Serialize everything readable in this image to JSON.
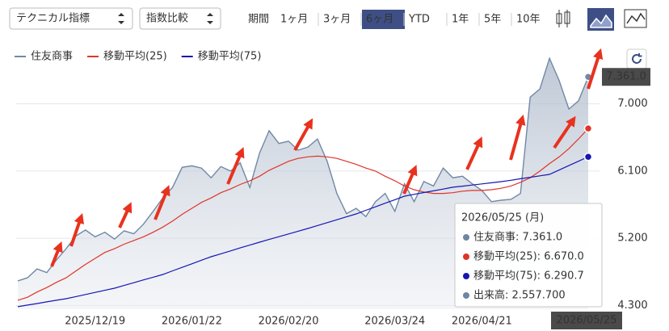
{
  "toolbar": {
    "selects": [
      "テクニカル指標",
      "指数比較"
    ],
    "periods": [
      "期間",
      "1ヶ月",
      "3ヶ月",
      "6ヶ月",
      "YTD",
      "1年",
      "5年",
      "10年"
    ],
    "active_period": "6ヶ月"
  },
  "chart_data": {
    "type": "line",
    "x": [
      "2025/11/26",
      "2025/11/28",
      "2025/12/02",
      "2025/12/04",
      "2025/12/08",
      "2025/12/10",
      "2025/12/12",
      "2025/12/16",
      "2025/12/19",
      "2025/12/23",
      "2025/12/25",
      "2025/12/29",
      "2026/01/06",
      "2026/01/08",
      "2026/01/13",
      "2026/01/15",
      "2026/01/19",
      "2026/01/20",
      "2026/01/22",
      "2026/01/26",
      "2026/01/28",
      "2026/01/30",
      "2026/02/03",
      "2026/02/05",
      "2026/02/09",
      "2026/02/12",
      "2026/02/16",
      "2026/02/18",
      "2026/02/20",
      "2026/02/25",
      "2026/02/27",
      "2026/03/03",
      "2026/03/05",
      "2026/03/09",
      "2026/03/11",
      "2026/03/13",
      "2026/03/17",
      "2026/03/19",
      "2026/03/23",
      "2026/03/24",
      "2026/03/26",
      "2026/03/30",
      "2026/04/01",
      "2026/04/03",
      "2026/04/07",
      "2026/04/09",
      "2026/04/13",
      "2026/04/16",
      "2026/04/21",
      "2026/04/23",
      "2026/04/27",
      "2026/04/30",
      "2026/05/01",
      "2026/05/08",
      "2026/05/11",
      "2026/05/13",
      "2026/05/15",
      "2026/05/19",
      "2026/05/21",
      "2026/05/25"
    ],
    "xticks": [
      "2025/12/19",
      "2026/01/22",
      "2026/02/20",
      "2026/03/24",
      "2026/04/21"
    ],
    "series": [
      {
        "name": "住友商事",
        "color": "#7088a6",
        "area": true,
        "values": [
          4630,
          4670,
          4790,
          4740,
          4910,
          5060,
          5230,
          5310,
          5220,
          5280,
          5190,
          5300,
          5260,
          5390,
          5560,
          5740,
          5880,
          6150,
          6170,
          6140,
          6010,
          6160,
          6100,
          6210,
          5880,
          6340,
          6640,
          6470,
          6500,
          6380,
          6420,
          6530,
          6230,
          5800,
          5530,
          5600,
          5490,
          5690,
          5800,
          5560,
          5930,
          5690,
          5960,
          5900,
          6140,
          6010,
          6030,
          5930,
          5840,
          5690,
          5710,
          5720,
          5800,
          7090,
          7200,
          7610,
          7310,
          6930,
          7040,
          7361
        ]
      },
      {
        "name": "移動平均(25)",
        "color": "#e0342a",
        "values": [
          4370,
          4410,
          4480,
          4540,
          4610,
          4670,
          4760,
          4850,
          4930,
          5010,
          5060,
          5120,
          5170,
          5220,
          5280,
          5350,
          5430,
          5520,
          5600,
          5680,
          5740,
          5810,
          5860,
          5920,
          5970,
          6030,
          6110,
          6170,
          6230,
          6270,
          6290,
          6300,
          6290,
          6270,
          6230,
          6190,
          6140,
          6100,
          6030,
          5970,
          5900,
          5850,
          5820,
          5800,
          5800,
          5810,
          5830,
          5840,
          5840,
          5850,
          5870,
          5900,
          5950,
          6010,
          6100,
          6200,
          6290,
          6400,
          6530,
          6670
        ]
      },
      {
        "name": "移動平均(75)",
        "color": "#1616b4",
        "values": [
          4283,
          4305,
          4326,
          4348,
          4370,
          4391,
          4419,
          4447,
          4475,
          4503,
          4531,
          4568,
          4605,
          4642,
          4678,
          4715,
          4763,
          4810,
          4858,
          4906,
          4953,
          4992,
          5031,
          5070,
          5108,
          5147,
          5184,
          5221,
          5258,
          5294,
          5331,
          5370,
          5409,
          5448,
          5487,
          5526,
          5574,
          5621,
          5669,
          5716,
          5764,
          5788,
          5812,
          5835,
          5859,
          5883,
          5898,
          5913,
          5928,
          5943,
          5958,
          5977,
          5997,
          6016,
          6036,
          6055,
          6114,
          6173,
          6232,
          6290.7
        ]
      }
    ],
    "ylim": [
      4250,
      7650
    ],
    "yticks": [
      {
        "value": 4300,
        "label": "4.300"
      },
      {
        "value": 5200,
        "label": "5.200"
      },
      {
        "value": 6100,
        "label": "6.100"
      },
      {
        "value": 7000,
        "label": "7.000"
      }
    ],
    "grid": true,
    "last_price_label": "7.361.0",
    "tooltip": {
      "title": "2026/05/25 (月)",
      "rows": [
        {
          "text": "住友商事: 7.361.0",
          "color": "#6f86a3"
        },
        {
          "text": "移動平均(25): 6.670.0",
          "color": "#e0342a"
        },
        {
          "text": "移動平均(75): 6.290.7",
          "color": "#1616b4"
        },
        {
          "text": "出来高: 2.557.700",
          "color": "#6f86a3"
        }
      ]
    }
  }
}
